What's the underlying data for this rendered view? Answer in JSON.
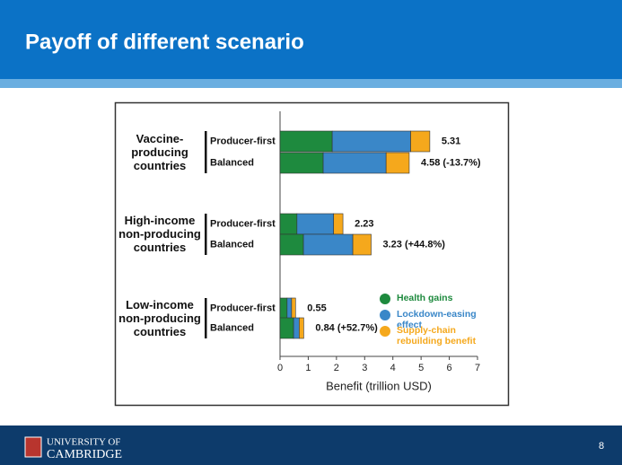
{
  "slide_title": "Payoff of different scenario",
  "page_number": "8",
  "logo_lines": [
    "UNIVERSITY OF",
    "CAMBRIDGE"
  ],
  "chart_data": {
    "type": "stacked-barh",
    "groups": [
      "Vaccine-producing countries",
      "High-income non-producing countries",
      "Low-income non-producing countries"
    ],
    "categories": [
      "Producer-first",
      "Balanced",
      "Producer-first",
      "Balanced",
      "Producer-first",
      "Balanced"
    ],
    "series": [
      {
        "name": "Health gains",
        "color": "#1e8a3e",
        "values": [
          1.85,
          1.53,
          0.6,
          0.83,
          0.25,
          0.48
        ]
      },
      {
        "name": "Lockdown-easing effect",
        "color": "#3a87c8",
        "values": [
          2.78,
          2.23,
          1.3,
          1.75,
          0.16,
          0.2
        ]
      },
      {
        "name": "Supply-chain rebuilding benefit",
        "color": "#f5a81c",
        "values": [
          0.68,
          0.82,
          0.33,
          0.65,
          0.14,
          0.16
        ]
      }
    ],
    "totals": [
      5.31,
      4.58,
      2.23,
      3.23,
      0.55,
      0.84
    ],
    "value_labels": [
      "5.31",
      "4.58 (-13.7%)",
      "2.23",
      "3.23 (+44.8%)",
      "0.55",
      "0.84 (+52.7%)"
    ],
    "x_label": "Benefit (trillion USD)",
    "xlim": [
      0,
      7
    ],
    "xticks": [
      0,
      1,
      2,
      3,
      4,
      5,
      6,
      7
    ]
  }
}
